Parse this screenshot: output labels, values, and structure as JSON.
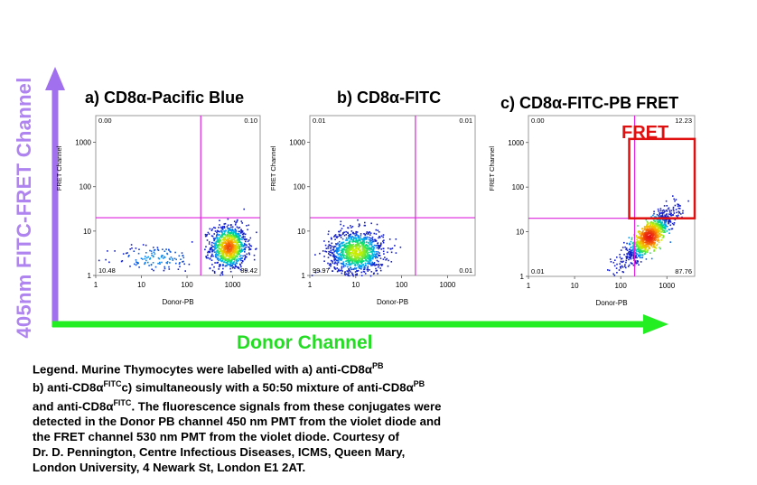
{
  "axis_titles": {
    "y_big": "405nm FITC-FRET Channel",
    "x_big": "Donor Channel"
  },
  "fret_box_label": "FRET",
  "colors": {
    "y_arrow": "#a070ee",
    "x_arrow": "#22ee22",
    "gate_lines": "#dd22dd",
    "fret_box": "#e01010"
  },
  "legend": {
    "line1_text": "Legend. Murine Thymocytes were labelled  with a) anti-CD8",
    "line2_prefix": "b) anti-CD8",
    "line2_mid": "c) simultaneously with a 50:50 mixture of anti-CD8",
    "line3_prefix": "and anti-CD8",
    "line3_suffix": ". The fluorescence signals from these conjugates were",
    "line4": "detected in the Donor PB channel 450 nm PMT from the violet diode and",
    "line5": "the FRET channel 530 nm PMT from the violet diode. Courtesy of",
    "line6": "Dr. D. Pennington, Centre Infectious Diseases, ICMS, Queen Mary,",
    "line7": "London University, 4 Newark St, London E1 2AT.",
    "alpha": "α",
    "sup_pb": "PB",
    "sup_fitc": "FITC"
  },
  "chart_data": [
    {
      "type": "scatter",
      "title_prefix": "a) CD8",
      "title_alpha": "α",
      "title_suffix": "-Pacific Blue",
      "xlabel": "Donor-PB",
      "ylabel": "FRET Channel",
      "x_scale": "log",
      "y_scale": "log",
      "xlim": [
        1,
        4000
      ],
      "ylim": [
        1,
        4000
      ],
      "x_ticks": [
        "1",
        "10",
        "100",
        "1000"
      ],
      "y_ticks": [
        "1",
        "10",
        "100",
        "1000"
      ],
      "gate": {
        "x": 200,
        "y": 20
      },
      "quadrants": {
        "top_left": "0.00",
        "top_right": "0.10",
        "bottom_left": "10.48",
        "bottom_right": "89.42"
      },
      "populations": [
        {
          "x_center": 800,
          "y_center": 4.5,
          "x_spread_decades": 0.2,
          "y_spread_decades": 0.25,
          "fraction": 0.89,
          "color_mode": "dense"
        },
        {
          "x_center": 20,
          "y_center": 2.5,
          "x_spread_decades": 0.45,
          "y_spread_decades": 0.15,
          "fraction": 0.11,
          "color_mode": "sparse"
        }
      ]
    },
    {
      "type": "scatter",
      "title_prefix": "b) CD8",
      "title_alpha": "α",
      "title_suffix": "-FITC",
      "xlabel": "Donor-PB",
      "ylabel": "FRET Channel",
      "x_scale": "log",
      "y_scale": "log",
      "xlim": [
        1,
        4000
      ],
      "ylim": [
        1,
        4000
      ],
      "x_ticks": [
        "1",
        "10",
        "100",
        "1000"
      ],
      "y_ticks": [
        "1",
        "10",
        "100",
        "1000"
      ],
      "gate": {
        "x": 200,
        "y": 20
      },
      "quadrants": {
        "top_left": "0.01",
        "top_right": "0.01",
        "bottom_left": "99.97",
        "bottom_right": "0.01"
      },
      "populations": [
        {
          "x_center": 10,
          "y_center": 3.5,
          "x_spread_decades": 0.3,
          "y_spread_decades": 0.25,
          "fraction": 1.0,
          "color_mode": "medium"
        }
      ]
    },
    {
      "type": "scatter",
      "title_prefix": "c) CD8",
      "title_alpha": "α",
      "title_suffix": "-FITC-PB FRET",
      "xlabel": "Donor-PB",
      "ylabel": "FRET Channel",
      "x_scale": "log",
      "y_scale": "log",
      "xlim": [
        1,
        4000
      ],
      "ylim": [
        1,
        4000
      ],
      "x_ticks": [
        "1",
        "10",
        "100",
        "1000"
      ],
      "y_ticks": [
        "1",
        "10",
        "100",
        "1000"
      ],
      "gate": {
        "x": 200,
        "y": 20
      },
      "quadrants": {
        "top_left": "0.00",
        "top_right": "12.23",
        "bottom_left": "0.01",
        "bottom_right": "87.76"
      },
      "fret_gate": {
        "x_min": 200,
        "x_max": 4000,
        "y_min": 20,
        "y_max": 1200
      },
      "populations": [
        {
          "x_center": 400,
          "y_center": 8,
          "x_spread_decades": 0.28,
          "y_spread_decades": 0.3,
          "fraction": 1.0,
          "color_mode": "diagonal",
          "correlation": 0.85
        }
      ]
    }
  ]
}
